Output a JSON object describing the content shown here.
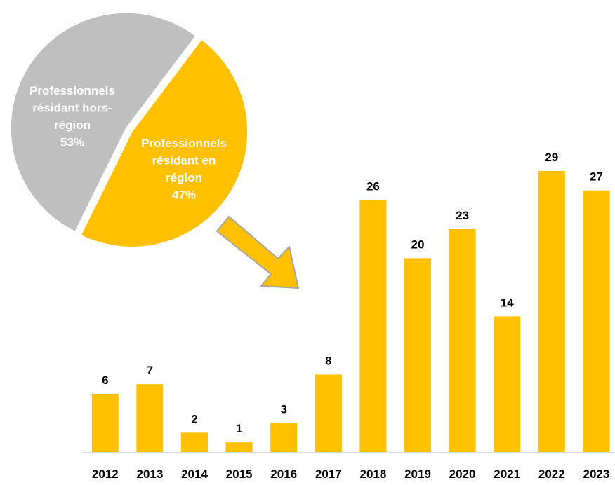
{
  "colors": {
    "gold": "#FFC000",
    "gray": "#BFBFBF",
    "text_dark": "#000000",
    "text_light": "#FFFFFF",
    "axis": "#D9D9D9"
  },
  "chart_data": [
    {
      "type": "pie",
      "slices": [
        {
          "label_lines": [
            "Professionnels",
            "résidant hors-",
            "région"
          ],
          "value": 53,
          "value_label": "53%",
          "color": "#BFBFBF"
        },
        {
          "label_lines": [
            "Professionnels",
            "résidant en",
            "région"
          ],
          "value": 47,
          "value_label": "47%",
          "color": "#FFC000",
          "exploded": true
        }
      ]
    },
    {
      "type": "bar",
      "categories": [
        "2012",
        "2013",
        "2014",
        "2015",
        "2016",
        "2017",
        "2018",
        "2019",
        "2020",
        "2021",
        "2022",
        "2023"
      ],
      "values": [
        6,
        7,
        2,
        1,
        3,
        8,
        26,
        20,
        23,
        14,
        29,
        27
      ],
      "data_labels": [
        "6",
        "7",
        "2",
        "1",
        "3",
        "8",
        "26",
        "20",
        "23",
        "14",
        "29",
        "27"
      ],
      "color": "#FFC000",
      "ylim": [
        0,
        29
      ],
      "grid": false,
      "legend": "none",
      "title": "",
      "xlabel": "",
      "ylabel": ""
    }
  ],
  "annotations": {
    "arrow": "pie-to-bars",
    "arrow_icon": "arrow-down-right-icon"
  }
}
